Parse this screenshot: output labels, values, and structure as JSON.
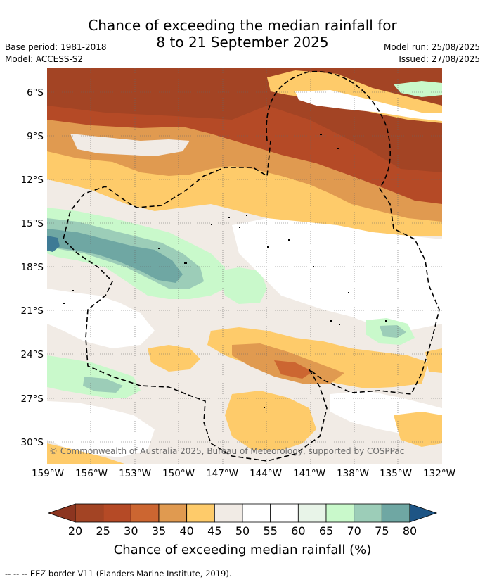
{
  "title": {
    "line1": "Chance of exceeding the median rainfall for",
    "line2": "8 to 21 September 2025"
  },
  "meta": {
    "base_period": "Base period: 1981-2018",
    "model": "Model: ACCESS-S2",
    "model_run": "Model run: 25/08/2025",
    "issued": "Issued: 27/08/2025"
  },
  "map": {
    "longitude_labels": [
      "159°W",
      "156°W",
      "153°W",
      "150°W",
      "147°W",
      "144°W",
      "141°W",
      "138°W",
      "135°W",
      "132°W"
    ],
    "latitude_labels": [
      "6°S",
      "9°S",
      "12°S",
      "15°S",
      "18°S",
      "21°S",
      "24°S",
      "27°S",
      "30°S"
    ],
    "copyright": "© Commonwealth of Australia 2025, Bureau of Meteorology, supported by COSPPac",
    "lon_range": [
      -159,
      -132
    ],
    "lat_range": [
      -31.5,
      -4.4
    ]
  },
  "colorbar": {
    "ticks": [
      "20",
      "25",
      "30",
      "35",
      "40",
      "45",
      "50",
      "55",
      "60",
      "65",
      "70",
      "75",
      "80"
    ],
    "colors": [
      "#a34424",
      "#b54a26",
      "#cc6631",
      "#e09a50",
      "#fecb6a",
      "#f1ebe5",
      "#ffffff",
      "#ffffff",
      "#e8f4e8",
      "#c9f9cb",
      "#9ccdb8",
      "#6fa7a3",
      "#3e7a95"
    ],
    "under_color": "#8c3520",
    "over_color": "#1e5585",
    "title": "Chance of exceeding median rainfall (%)"
  },
  "footer": "--  --  -- EEZ border V11 (Flanders Marine Institute, 2019)."
}
